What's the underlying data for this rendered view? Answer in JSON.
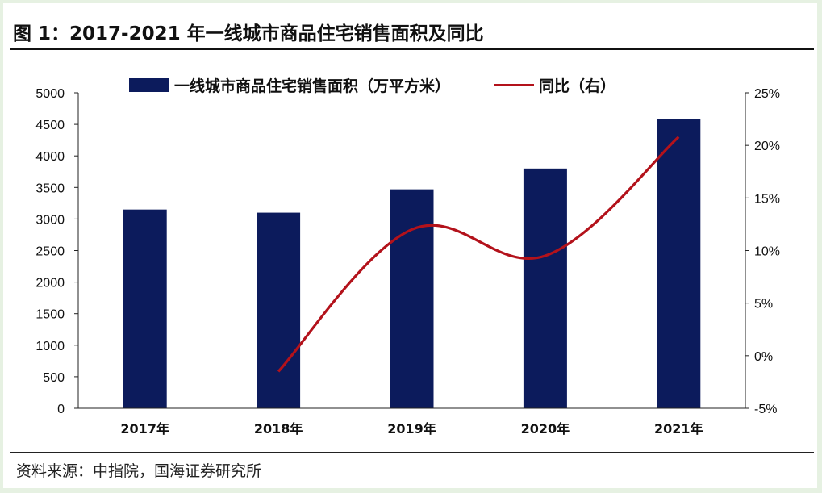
{
  "figure": {
    "title": "图 1：2017-2021 年一线城市商品住宅销售面积及同比",
    "source": "资料来源：中指院，国海证券研究所"
  },
  "chart_data": {
    "type": "bar",
    "categories": [
      "2017年",
      "2018年",
      "2019年",
      "2020年",
      "2021年"
    ],
    "series": [
      {
        "name": "一线城市商品住宅销售面积（万平方米）",
        "type": "bar",
        "axis": "left",
        "color": "#0c1b5c",
        "values": [
          3150,
          3100,
          3470,
          3800,
          4590
        ]
      },
      {
        "name": "同比（右）",
        "type": "line",
        "axis": "right",
        "color": "#b3121b",
        "values": [
          null,
          -1.5,
          12.0,
          9.5,
          20.8
        ]
      }
    ],
    "y_left": {
      "min": 0,
      "max": 5000,
      "step": 500,
      "ticks": [
        "0",
        "500",
        "1000",
        "1500",
        "2000",
        "2500",
        "3000",
        "3500",
        "4000",
        "4500",
        "5000"
      ]
    },
    "y_right": {
      "min": -5,
      "max": 25,
      "step": 5,
      "ticks": [
        "-5%",
        "0%",
        "5%",
        "10%",
        "15%",
        "20%",
        "25%"
      ]
    },
    "grid": false,
    "legend_position": "top"
  }
}
